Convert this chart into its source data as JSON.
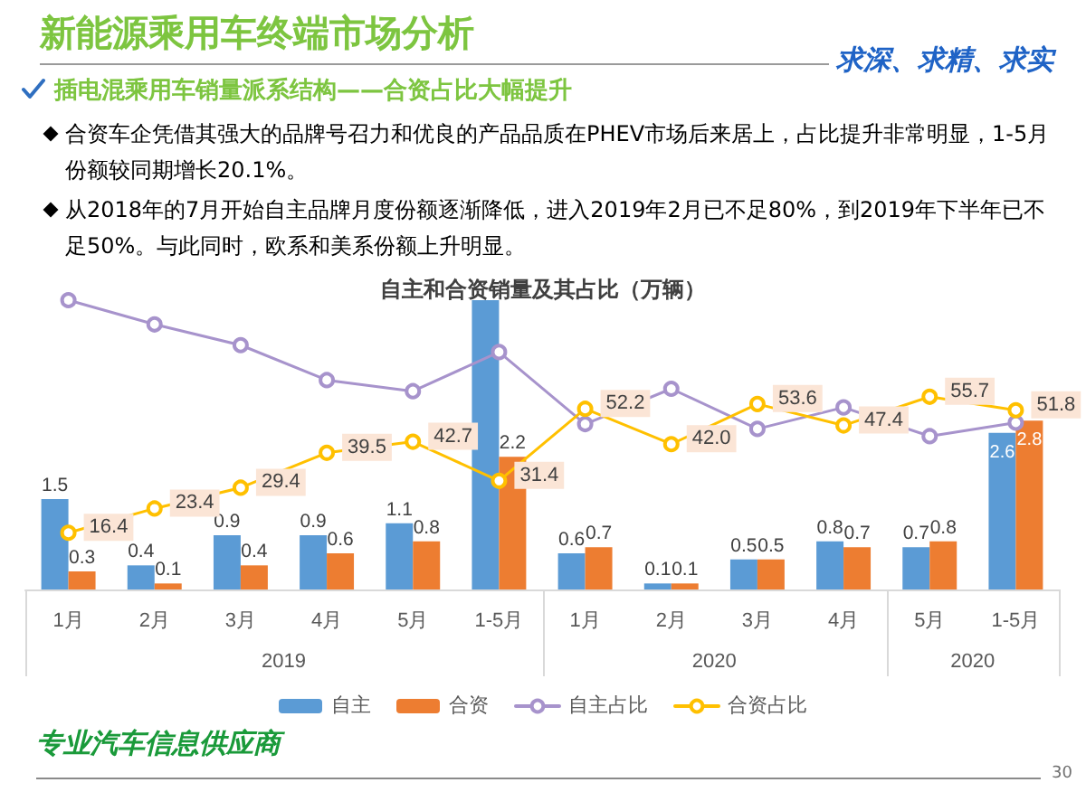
{
  "chart_data": {
    "type": "bar",
    "title": "自主和合资销量及其占比（万辆）",
    "categories": [
      "1月",
      "2月",
      "3月",
      "4月",
      "5月",
      "1-5月",
      "1月",
      "2月",
      "3月",
      "4月",
      "5月",
      "1-5月"
    ],
    "series": [
      {
        "name": "自主",
        "type": "bar",
        "color": "#5b9bd5",
        "values": [
          1.5,
          0.4,
          0.9,
          0.9,
          1.1,
          4.8,
          0.6,
          0.1,
          0.5,
          0.8,
          0.7,
          2.6
        ],
        "value_labels": [
          "1.5",
          "0.4",
          "0.9",
          "0.9",
          "1.1",
          null,
          "0.6",
          "0.1",
          "0.5",
          "0.8",
          "0.7",
          "2.6"
        ]
      },
      {
        "name": "合资",
        "type": "bar",
        "color": "#ed7d31",
        "values": [
          0.3,
          0.1,
          0.4,
          0.6,
          0.8,
          2.2,
          0.7,
          0.1,
          0.5,
          0.7,
          0.8,
          2.8
        ],
        "value_labels": [
          "0.3",
          "0.1",
          "0.4",
          "0.6",
          "0.8",
          "2.2",
          "0.7",
          "0.1",
          "0.5",
          "0.7",
          "0.8",
          "2.8"
        ]
      },
      {
        "name": "自主占比",
        "type": "line",
        "axis": "y2",
        "color": "#a793cc",
        "values": [
          83.6,
          76.6,
          70.6,
          60.5,
          57.3,
          68.6,
          47.8,
          58.0,
          46.4,
          52.6,
          44.3,
          48.2
        ]
      },
      {
        "name": "合资占比",
        "type": "line",
        "axis": "y2",
        "color": "#ffc000",
        "values": [
          16.4,
          23.4,
          29.4,
          39.5,
          42.7,
          31.4,
          52.2,
          42.0,
          53.6,
          47.4,
          55.7,
          51.8
        ],
        "value_labels": [
          "16.4",
          "23.4",
          "29.4",
          "39.5",
          "42.7",
          "31.4",
          "52.2",
          "42.0",
          "53.6",
          "47.4",
          "55.7",
          "51.8"
        ]
      }
    ],
    "annotations": [
      "新能源乘用车终端市场分析",
      "求深、求精、求实",
      "插电混乘用车销量派系结构——合资占比大幅提升",
      "合资车企凭借其强大的品牌号召力和优良的产品品质在PHEV市场后来居上，占比提升非常明显，1-5月份额较同期增长20.1%。",
      "从2018年的7月开始自主品牌月度份额逐渐降低，进入2019年2月已不足80%，到2019年下半年已不足50%。与此同时，欧系和美系份额上升明显。",
      "2019",
      "2020",
      "2020",
      "专业汽车信息供应商",
      "30"
    ],
    "legend": "bottom",
    "marker": "circle",
    "line_style": "solid",
    "tick_labels": "x"
  }
}
